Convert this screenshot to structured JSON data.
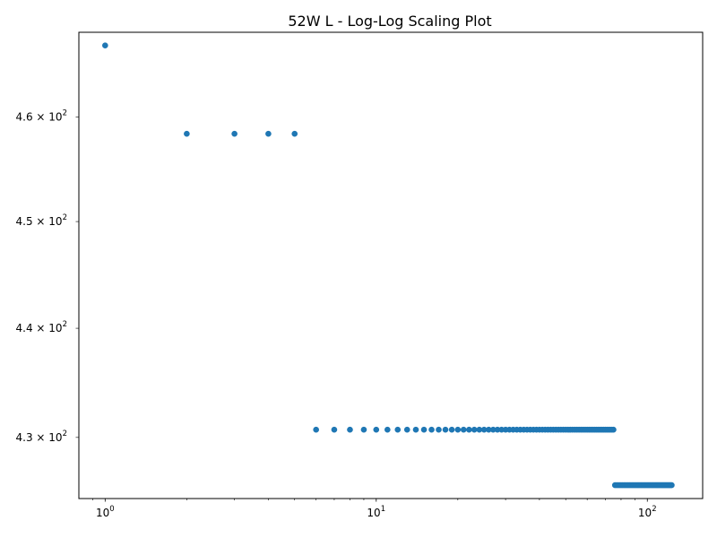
{
  "colors": {
    "marker": "#1f77b4",
    "axes": "#000000",
    "background": "#ffffff"
  },
  "chart_data": {
    "type": "scatter",
    "title": "52W L  - Log-Log Scaling Plot",
    "xlabel": "",
    "ylabel": "",
    "x_scale": "log",
    "y_scale": "log",
    "xlim": [
      0.8,
      160
    ],
    "ylim": [
      424.5,
      468.3
    ],
    "grid": false,
    "legend": "none",
    "x_ticks": [
      {
        "value": 1,
        "mantissa": "10",
        "exponent": "0"
      },
      {
        "value": 10,
        "mantissa": "10",
        "exponent": "1"
      },
      {
        "value": 100,
        "mantissa": "10",
        "exponent": "2"
      }
    ],
    "y_ticks": [
      {
        "value": 430,
        "mantissa": "4.3 × 10",
        "exponent": "2"
      },
      {
        "value": 440,
        "mantissa": "4.4 × 10",
        "exponent": "2"
      },
      {
        "value": 450,
        "mantissa": "4.5 × 10",
        "exponent": "2"
      },
      {
        "value": 460,
        "mantissa": "4.6 × 10",
        "exponent": "2"
      }
    ],
    "series": [
      {
        "runs": [
          {
            "x_start": 1,
            "x_end": 1,
            "y": 467.0
          },
          {
            "x_start": 2,
            "x_end": 5,
            "y": 458.4
          },
          {
            "x_start": 6,
            "x_end": 75,
            "y": 430.7
          },
          {
            "x_start": 76,
            "x_end": 123,
            "y": 425.7
          }
        ]
      }
    ]
  }
}
